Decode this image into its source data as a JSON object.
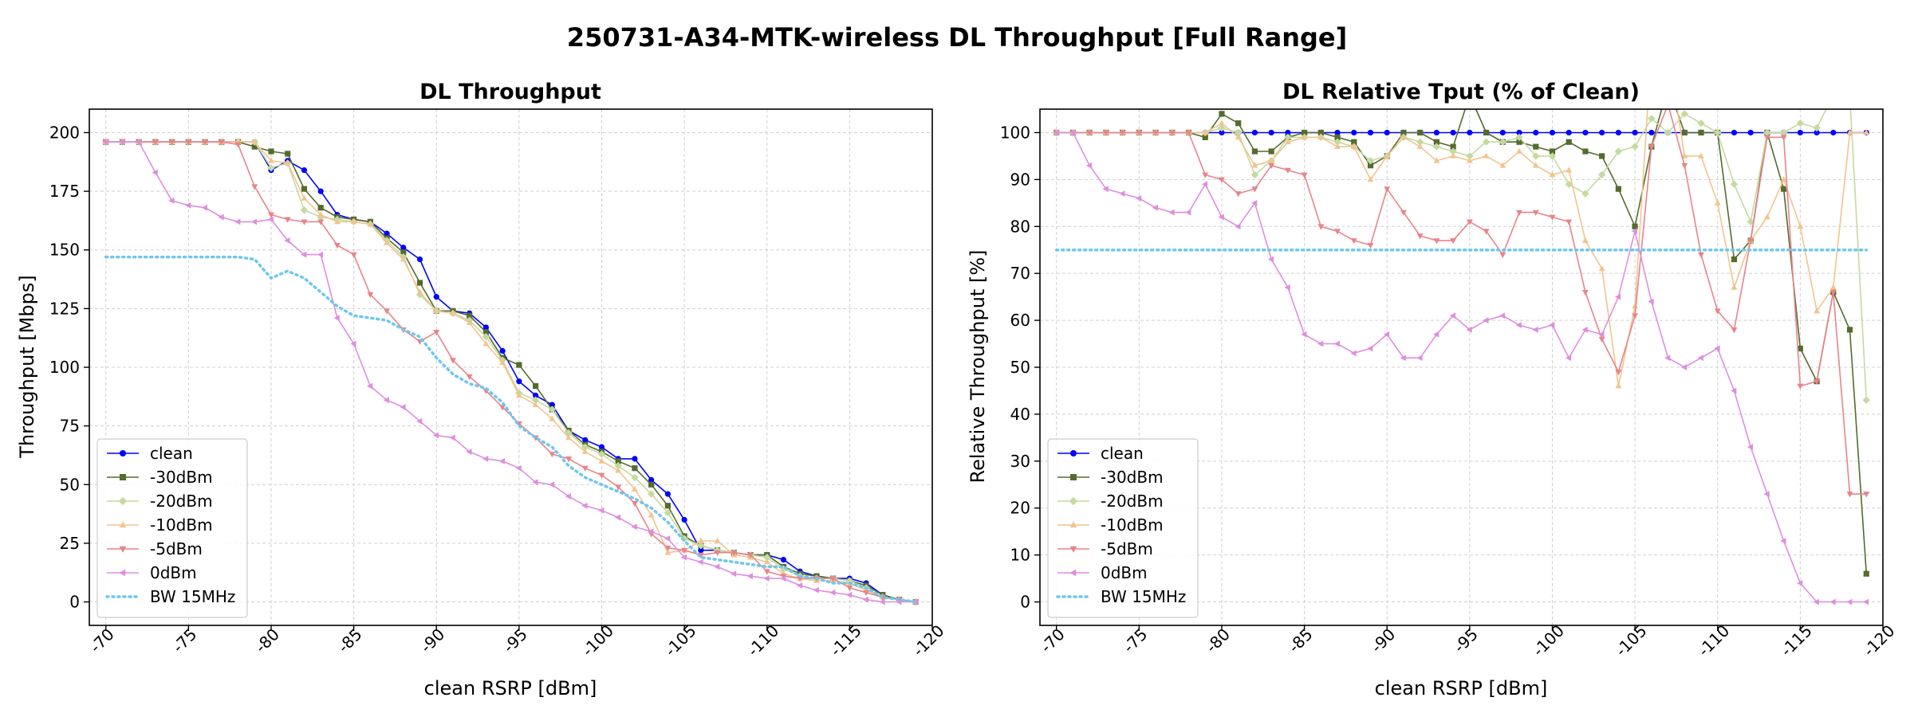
{
  "suptitle": "250731-A34-MTK-wireless DL Throughput [Full Range]",
  "chart_data": [
    {
      "type": "line",
      "title": "DL Throughput",
      "xlabel": "clean RSRP [dBm]",
      "ylabel": "Throughput [Mbps]",
      "xlim": [
        -69,
        -120
      ],
      "ylim": [
        -10,
        210
      ],
      "xticks": [
        -70,
        -75,
        -80,
        -85,
        -90,
        -95,
        -100,
        -105,
        -110,
        -115,
        -120
      ],
      "yticks": [
        0,
        25,
        50,
        75,
        100,
        125,
        150,
        175,
        200
      ],
      "grid": true,
      "legend": "lower-left",
      "x": [
        -70,
        -71,
        -72,
        -73,
        -74,
        -75,
        -76,
        -77,
        -78,
        -79,
        -80,
        -81,
        -82,
        -83,
        -84,
        -85,
        -86,
        -87,
        -88,
        -89,
        -90,
        -91,
        -92,
        -93,
        -94,
        -95,
        -96,
        -97,
        -98,
        -99,
        -100,
        -101,
        -102,
        -103,
        -104,
        -105,
        -106,
        -107,
        -108,
        -109,
        -110,
        -111,
        -112,
        -113,
        -114,
        -115,
        -116,
        -117,
        -118,
        -119
      ],
      "series": [
        {
          "name": "clean",
          "color": "#0000ff",
          "marker": "circle",
          "values": [
            196,
            196,
            196,
            196,
            196,
            196,
            196,
            196,
            196,
            196,
            184,
            188,
            184,
            175,
            165,
            163,
            162,
            157,
            151,
            146,
            130,
            124,
            123,
            117,
            107,
            94,
            88,
            84,
            73,
            69,
            66,
            61,
            61,
            52,
            46,
            35,
            22,
            22,
            21,
            20,
            20,
            18,
            13,
            11,
            10,
            10,
            8,
            3,
            1,
            0
          ]
        },
        {
          "name": "-30dBm",
          "color": "#556b2f",
          "marker": "square",
          "values": [
            196,
            196,
            196,
            196,
            196,
            196,
            196,
            196,
            196,
            194,
            192,
            191,
            176,
            168,
            164,
            163,
            162,
            155,
            149,
            136,
            124,
            124,
            122,
            115,
            104,
            101,
            92,
            82,
            73,
            67,
            64,
            60,
            57,
            50,
            41,
            28,
            24,
            22,
            21,
            20,
            20,
            15,
            12,
            11,
            10,
            9,
            7,
            3,
            1,
            0
          ]
        },
        {
          "name": "-20dBm",
          "color": "#c5d9a0",
          "marker": "diamond",
          "values": [
            196,
            196,
            196,
            196,
            196,
            196,
            196,
            196,
            196,
            196,
            185,
            187,
            167,
            164,
            163,
            162,
            161,
            154,
            147,
            131,
            124,
            123,
            120,
            113,
            103,
            89,
            86,
            82,
            72,
            66,
            63,
            58,
            53,
            46,
            38,
            27,
            24,
            22,
            21,
            20,
            19,
            14,
            11,
            10,
            10,
            9,
            6,
            2,
            1,
            0
          ]
        },
        {
          "name": "-10dBm",
          "color": "#f2c48f",
          "marker": "triangle-up",
          "values": [
            196,
            196,
            196,
            196,
            196,
            196,
            196,
            196,
            196,
            196,
            188,
            187,
            172,
            165,
            162,
            162,
            161,
            153,
            146,
            132,
            124,
            123,
            119,
            110,
            102,
            88,
            84,
            78,
            70,
            64,
            60,
            56,
            48,
            37,
            21,
            22,
            26,
            26,
            20,
            19,
            17,
            12,
            10,
            9,
            9,
            8,
            5,
            2,
            1,
            0
          ]
        },
        {
          "name": "-5dBm",
          "color": "#e8848a",
          "marker": "triangle-down",
          "values": [
            196,
            196,
            196,
            196,
            196,
            196,
            196,
            196,
            195,
            177,
            165,
            163,
            162,
            162,
            152,
            148,
            131,
            124,
            116,
            111,
            115,
            103,
            96,
            90,
            83,
            76,
            70,
            63,
            61,
            57,
            54,
            49,
            42,
            29,
            23,
            22,
            20,
            21,
            21,
            20,
            13,
            11,
            10,
            10,
            10,
            6,
            4,
            2,
            1,
            0
          ]
        },
        {
          "name": "0dBm",
          "color": "#dd8fdd",
          "marker": "triangle-left",
          "values": [
            196,
            196,
            196,
            183,
            171,
            169,
            168,
            164,
            162,
            162,
            163,
            154,
            148,
            148,
            121,
            110,
            92,
            86,
            83,
            77,
            71,
            70,
            64,
            61,
            60,
            57,
            51,
            50,
            45,
            41,
            39,
            36,
            32,
            30,
            27,
            19,
            17,
            15,
            12,
            11,
            10,
            10,
            7,
            5,
            4,
            3,
            1,
            0,
            0,
            0
          ]
        },
        {
          "name": "BW 15MHz",
          "color": "#6cc7f0",
          "style": "dotted",
          "values": [
            147,
            147,
            147,
            147,
            147,
            147,
            147,
            147,
            147,
            146,
            138,
            141,
            138,
            132,
            126,
            122,
            121,
            120,
            116,
            113,
            104,
            97,
            93,
            91,
            85,
            75,
            70,
            66,
            58,
            53,
            50,
            47,
            44,
            40,
            34,
            26,
            19,
            18,
            17,
            16,
            15,
            15,
            11,
            10,
            8,
            8,
            6,
            2,
            1,
            0
          ]
        }
      ]
    },
    {
      "type": "line",
      "title": "DL Relative Tput (% of Clean)",
      "xlabel": "clean RSRP [dBm]",
      "ylabel": "Relative Throughput [%]",
      "xlim": [
        -69,
        -120
      ],
      "ylim": [
        -5,
        105
      ],
      "xticks": [
        -70,
        -75,
        -80,
        -85,
        -90,
        -95,
        -100,
        -105,
        -110,
        -115,
        -120
      ],
      "yticks": [
        0,
        10,
        20,
        30,
        40,
        50,
        60,
        70,
        80,
        90,
        100
      ],
      "grid": true,
      "legend": "lower-left",
      "x": [
        -70,
        -71,
        -72,
        -73,
        -74,
        -75,
        -76,
        -77,
        -78,
        -79,
        -80,
        -81,
        -82,
        -83,
        -84,
        -85,
        -86,
        -87,
        -88,
        -89,
        -90,
        -91,
        -92,
        -93,
        -94,
        -95,
        -96,
        -97,
        -98,
        -99,
        -100,
        -101,
        -102,
        -103,
        -104,
        -105,
        -106,
        -107,
        -108,
        -109,
        -110,
        -111,
        -112,
        -113,
        -114,
        -115,
        -116,
        -117,
        -118,
        -119
      ],
      "series": [
        {
          "name": "clean",
          "color": "#0000ff",
          "marker": "circle",
          "values": [
            100,
            100,
            100,
            100,
            100,
            100,
            100,
            100,
            100,
            100,
            100,
            100,
            100,
            100,
            100,
            100,
            100,
            100,
            100,
            100,
            100,
            100,
            100,
            100,
            100,
            100,
            100,
            100,
            100,
            100,
            100,
            100,
            100,
            100,
            100,
            100,
            100,
            100,
            100,
            100,
            100,
            100,
            100,
            100,
            100,
            100,
            100,
            100,
            100,
            100
          ]
        },
        {
          "name": "-30dBm",
          "color": "#556b2f",
          "marker": "square",
          "values": [
            100,
            100,
            100,
            100,
            100,
            100,
            100,
            100,
            100,
            99,
            104,
            102,
            96,
            96,
            99,
            100,
            100,
            99,
            98,
            93,
            95,
            100,
            100,
            98,
            97,
            108,
            100,
            98,
            98,
            97,
            96,
            98,
            96,
            95,
            88,
            80,
            97,
            110,
            100,
            100,
            100,
            73,
            77,
            100,
            88,
            54,
            47,
            66,
            58,
            6
          ]
        },
        {
          "name": "-20dBm",
          "color": "#c5d9a0",
          "marker": "diamond",
          "values": [
            100,
            100,
            100,
            100,
            100,
            100,
            100,
            100,
            100,
            100,
            101,
            100,
            91,
            94,
            99,
            99,
            99,
            98,
            97,
            94,
            95,
            99,
            98,
            97,
            96,
            95,
            98,
            98,
            99,
            95,
            95,
            89,
            87,
            91,
            96,
            97,
            103,
            100,
            104,
            102,
            100,
            89,
            81,
            100,
            100,
            102,
            101,
            108,
            108,
            43
          ]
        },
        {
          "name": "-10dBm",
          "color": "#f2c48f",
          "marker": "triangle-up",
          "values": [
            100,
            100,
            100,
            100,
            100,
            100,
            100,
            100,
            100,
            100,
            102,
            99,
            93,
            94,
            98,
            99,
            99,
            97,
            97,
            90,
            95,
            99,
            97,
            94,
            95,
            94,
            95,
            93,
            96,
            93,
            91,
            92,
            77,
            71,
            46,
            63,
            118,
            118,
            95,
            95,
            85,
            67,
            77,
            82,
            90,
            80,
            62,
            67,
            100,
            100
          ]
        },
        {
          "name": "-5dBm",
          "color": "#e8848a",
          "marker": "triangle-down",
          "values": [
            100,
            100,
            100,
            100,
            100,
            100,
            100,
            100,
            100,
            91,
            90,
            87,
            88,
            93,
            92,
            91,
            80,
            79,
            77,
            76,
            88,
            83,
            78,
            77,
            77,
            81,
            79,
            74,
            83,
            83,
            82,
            81,
            66,
            56,
            49,
            61,
            97,
            106,
            93,
            74,
            62,
            58,
            77,
            99,
            99,
            46,
            47,
            66,
            23,
            23
          ]
        },
        {
          "name": "0dBm",
          "color": "#dd8fdd",
          "marker": "triangle-left",
          "values": [
            100,
            100,
            93,
            88,
            87,
            86,
            84,
            83,
            83,
            89,
            82,
            80,
            85,
            73,
            67,
            57,
            55,
            55,
            53,
            54,
            57,
            52,
            52,
            57,
            61,
            58,
            60,
            61,
            59,
            58,
            59,
            52,
            58,
            57,
            65,
            79,
            64,
            52,
            50,
            52,
            54,
            45,
            33,
            23,
            13,
            4,
            0,
            0,
            0,
            0
          ]
        },
        {
          "name": "BW 15MHz",
          "color": "#6cc7f0",
          "style": "dotted",
          "values": [
            75,
            75,
            75,
            75,
            75,
            75,
            75,
            75,
            75,
            75,
            75,
            75,
            75,
            75,
            75,
            75,
            75,
            75,
            75,
            75,
            75,
            75,
            75,
            75,
            75,
            75,
            75,
            75,
            75,
            75,
            75,
            75,
            75,
            75,
            75,
            75,
            75,
            75,
            75,
            75,
            75,
            75,
            75,
            75,
            75,
            75,
            75,
            75,
            75,
            75
          ]
        }
      ]
    }
  ]
}
